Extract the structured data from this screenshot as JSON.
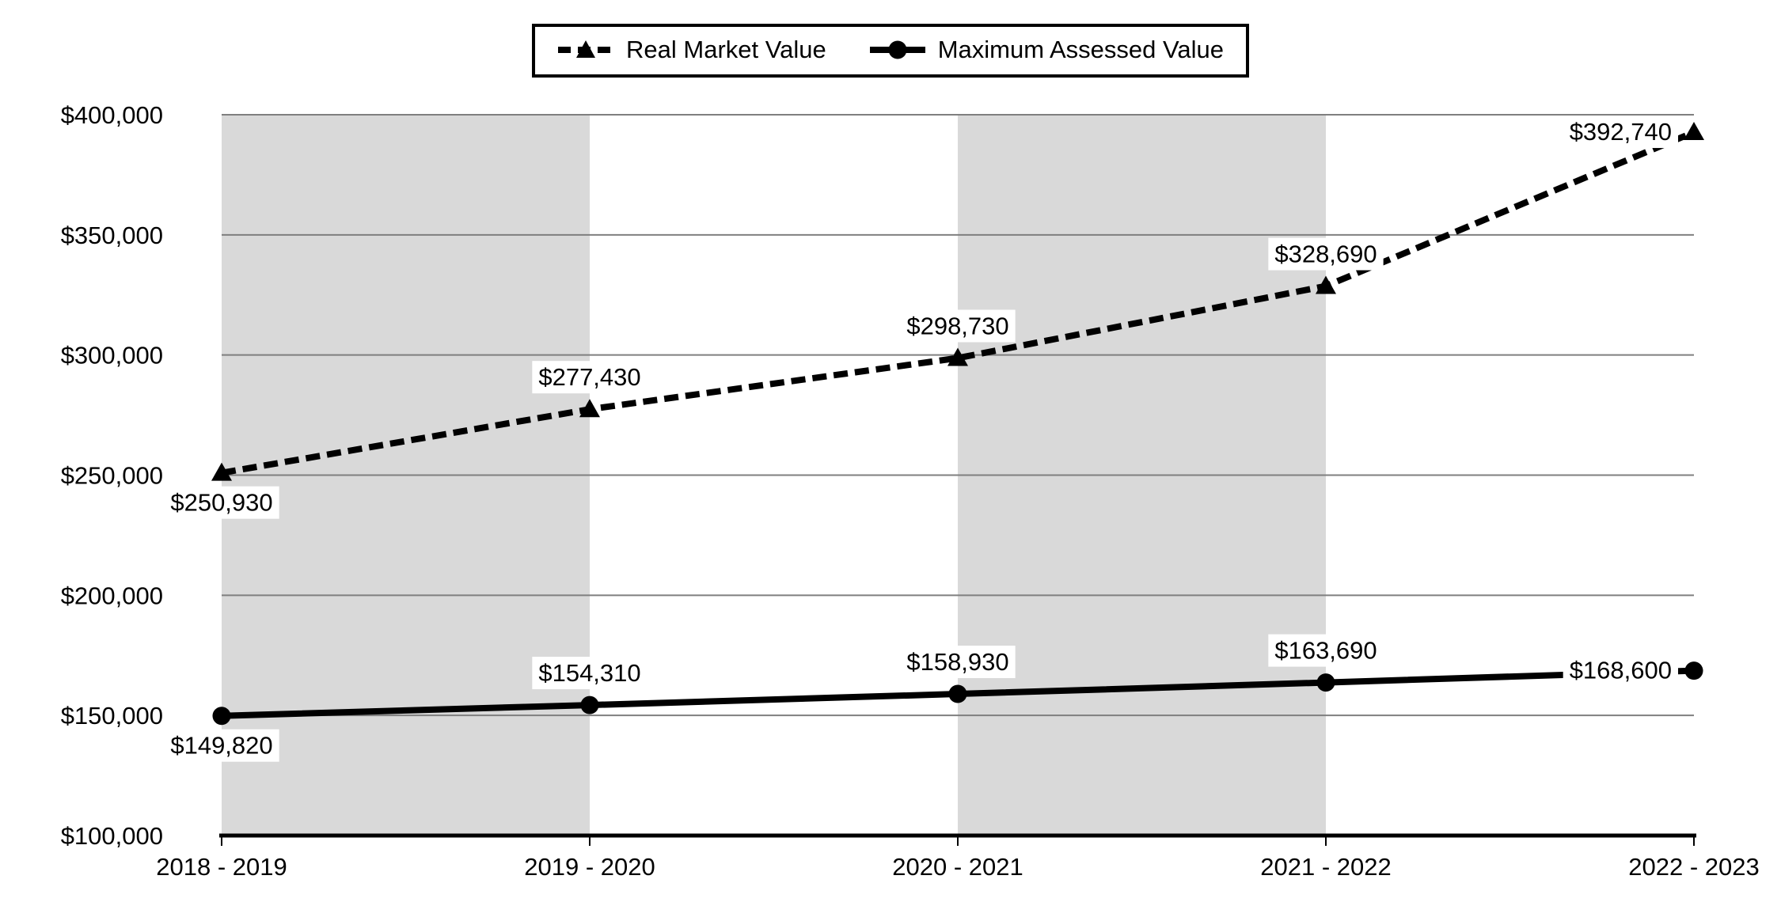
{
  "chart_data": {
    "type": "line",
    "title": "",
    "categories": [
      "2018 - 2019",
      "2019 - 2020",
      "2020 - 2021",
      "2021 - 2022",
      "2022 - 2023"
    ],
    "series": [
      {
        "name": "Real Market Value",
        "line_style": "dashed",
        "marker": "triangle",
        "color": "#000000",
        "values": [
          250930,
          277430,
          298730,
          328690,
          392740
        ],
        "data_labels": [
          "$250,930",
          "$277,430",
          "$298,730",
          "$328,690",
          "$392,740"
        ],
        "label_placement": [
          "below",
          "above",
          "above",
          "above",
          "left"
        ]
      },
      {
        "name": "Maximum Assessed Value",
        "line_style": "solid",
        "marker": "circle",
        "color": "#000000",
        "values": [
          149820,
          154310,
          158930,
          163690,
          168600
        ],
        "data_labels": [
          "$149,820",
          "$154,310",
          "$158,930",
          "$163,690",
          "$168,600"
        ],
        "label_placement": [
          "below",
          "above",
          "above",
          "above",
          "left"
        ]
      }
    ],
    "xlabel": "",
    "ylabel": "",
    "yaxis": {
      "min": 100000,
      "max": 400000,
      "step": 50000,
      "tick_labels": [
        "$100,000",
        "$150,000",
        "$200,000",
        "$250,000",
        "$300,000",
        "$350,000",
        "$400,000"
      ]
    },
    "grid": "horizontal",
    "legend_position": "top-center",
    "plot_bands": {
      "color": "#d9d9d9",
      "between_category_pairs": [
        [
          0,
          1
        ],
        [
          2,
          3
        ]
      ]
    },
    "colors": {
      "series": "#000000",
      "gridline": "#7f7f7f",
      "axis": "#000000",
      "band": "#d9d9d9",
      "background": "#ffffff",
      "label_background": "#ffffff"
    }
  }
}
